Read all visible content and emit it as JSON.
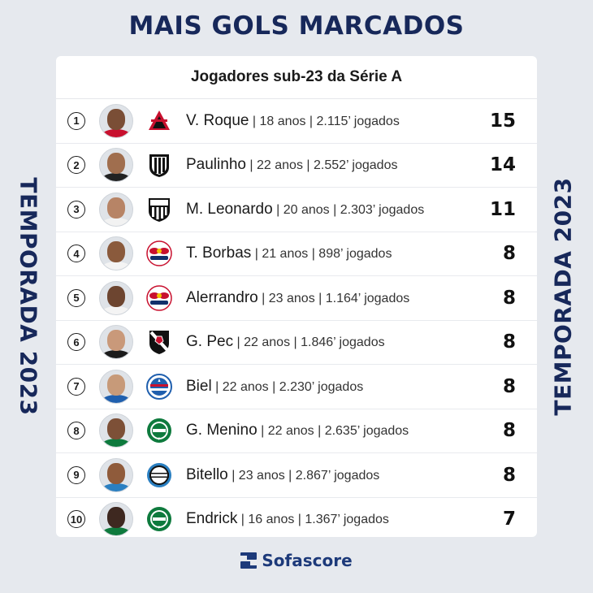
{
  "title": "MAIS GOLS MARCADOS",
  "side_label": "TEMPORADA 2023",
  "subtitle": "Jogadores sub-23 da Série A",
  "brand": "Sofascore",
  "players": [
    {
      "rank": "1",
      "name": "V. Roque",
      "meta": " | 18 anos | 2.115’ jogados",
      "goals": "15",
      "club_icon": "athletico-pr-crest-icon",
      "skin": "#7a4e36",
      "shirt": "#c8102e"
    },
    {
      "rank": "2",
      "name": "Paulinho",
      "meta": " | 22 anos | 2.552’ jogados",
      "goals": "14",
      "club_icon": "atletico-mg-crest-icon",
      "skin": "#a06e4e",
      "shirt": "#222222"
    },
    {
      "rank": "3",
      "name": "M. Leonardo",
      "meta": " | 20 anos | 2.303’ jogados",
      "goals": "11",
      "club_icon": "santos-crest-icon",
      "skin": "#b78466",
      "shirt": "#f2f2f2"
    },
    {
      "rank": "4",
      "name": "T. Borbas",
      "meta": " | 21 anos | 898’ jogados",
      "goals": "8",
      "club_icon": "red-bull-bragantino-crest-icon",
      "skin": "#8a5a3c",
      "shirt": "#f4f4f4"
    },
    {
      "rank": "5",
      "name": "Alerrandro",
      "meta": " | 23 anos | 1.164’ jogados",
      "goals": "8",
      "club_icon": "red-bull-bragantino-crest-icon",
      "skin": "#6d4530",
      "shirt": "#f4f4f4"
    },
    {
      "rank": "6",
      "name": "G. Pec",
      "meta": " | 22 anos | 1.846’ jogados",
      "goals": "8",
      "club_icon": "vasco-crest-icon",
      "skin": "#c9997a",
      "shirt": "#1b1b1b"
    },
    {
      "rank": "7",
      "name": "Biel",
      "meta": " | 22 anos | 2.230’ jogados",
      "goals": "8",
      "club_icon": "bahia-crest-icon",
      "skin": "#c79a79",
      "shirt": "#1f5fae"
    },
    {
      "rank": "8",
      "name": "G. Menino",
      "meta": " | 22 anos | 2.635’ jogados",
      "goals": "8",
      "club_icon": "palmeiras-crest-icon",
      "skin": "#7d5037",
      "shirt": "#0e7a3d"
    },
    {
      "rank": "9",
      "name": "Bitello",
      "meta": " | 23 anos | 2.867’ jogados",
      "goals": "8",
      "club_icon": "gremio-crest-icon",
      "skin": "#8f5b3b",
      "shirt": "#2a7fc1"
    },
    {
      "rank": "10",
      "name": "Endrick",
      "meta": " | 16 anos | 1.367’ jogados",
      "goals": "7",
      "club_icon": "palmeiras-crest-icon",
      "skin": "#3e2820",
      "shirt": "#0e7a3d"
    }
  ],
  "colors": {
    "navy": "#17285a",
    "background": "#e6e9ee",
    "brand_blue": "#1d3a7a"
  }
}
